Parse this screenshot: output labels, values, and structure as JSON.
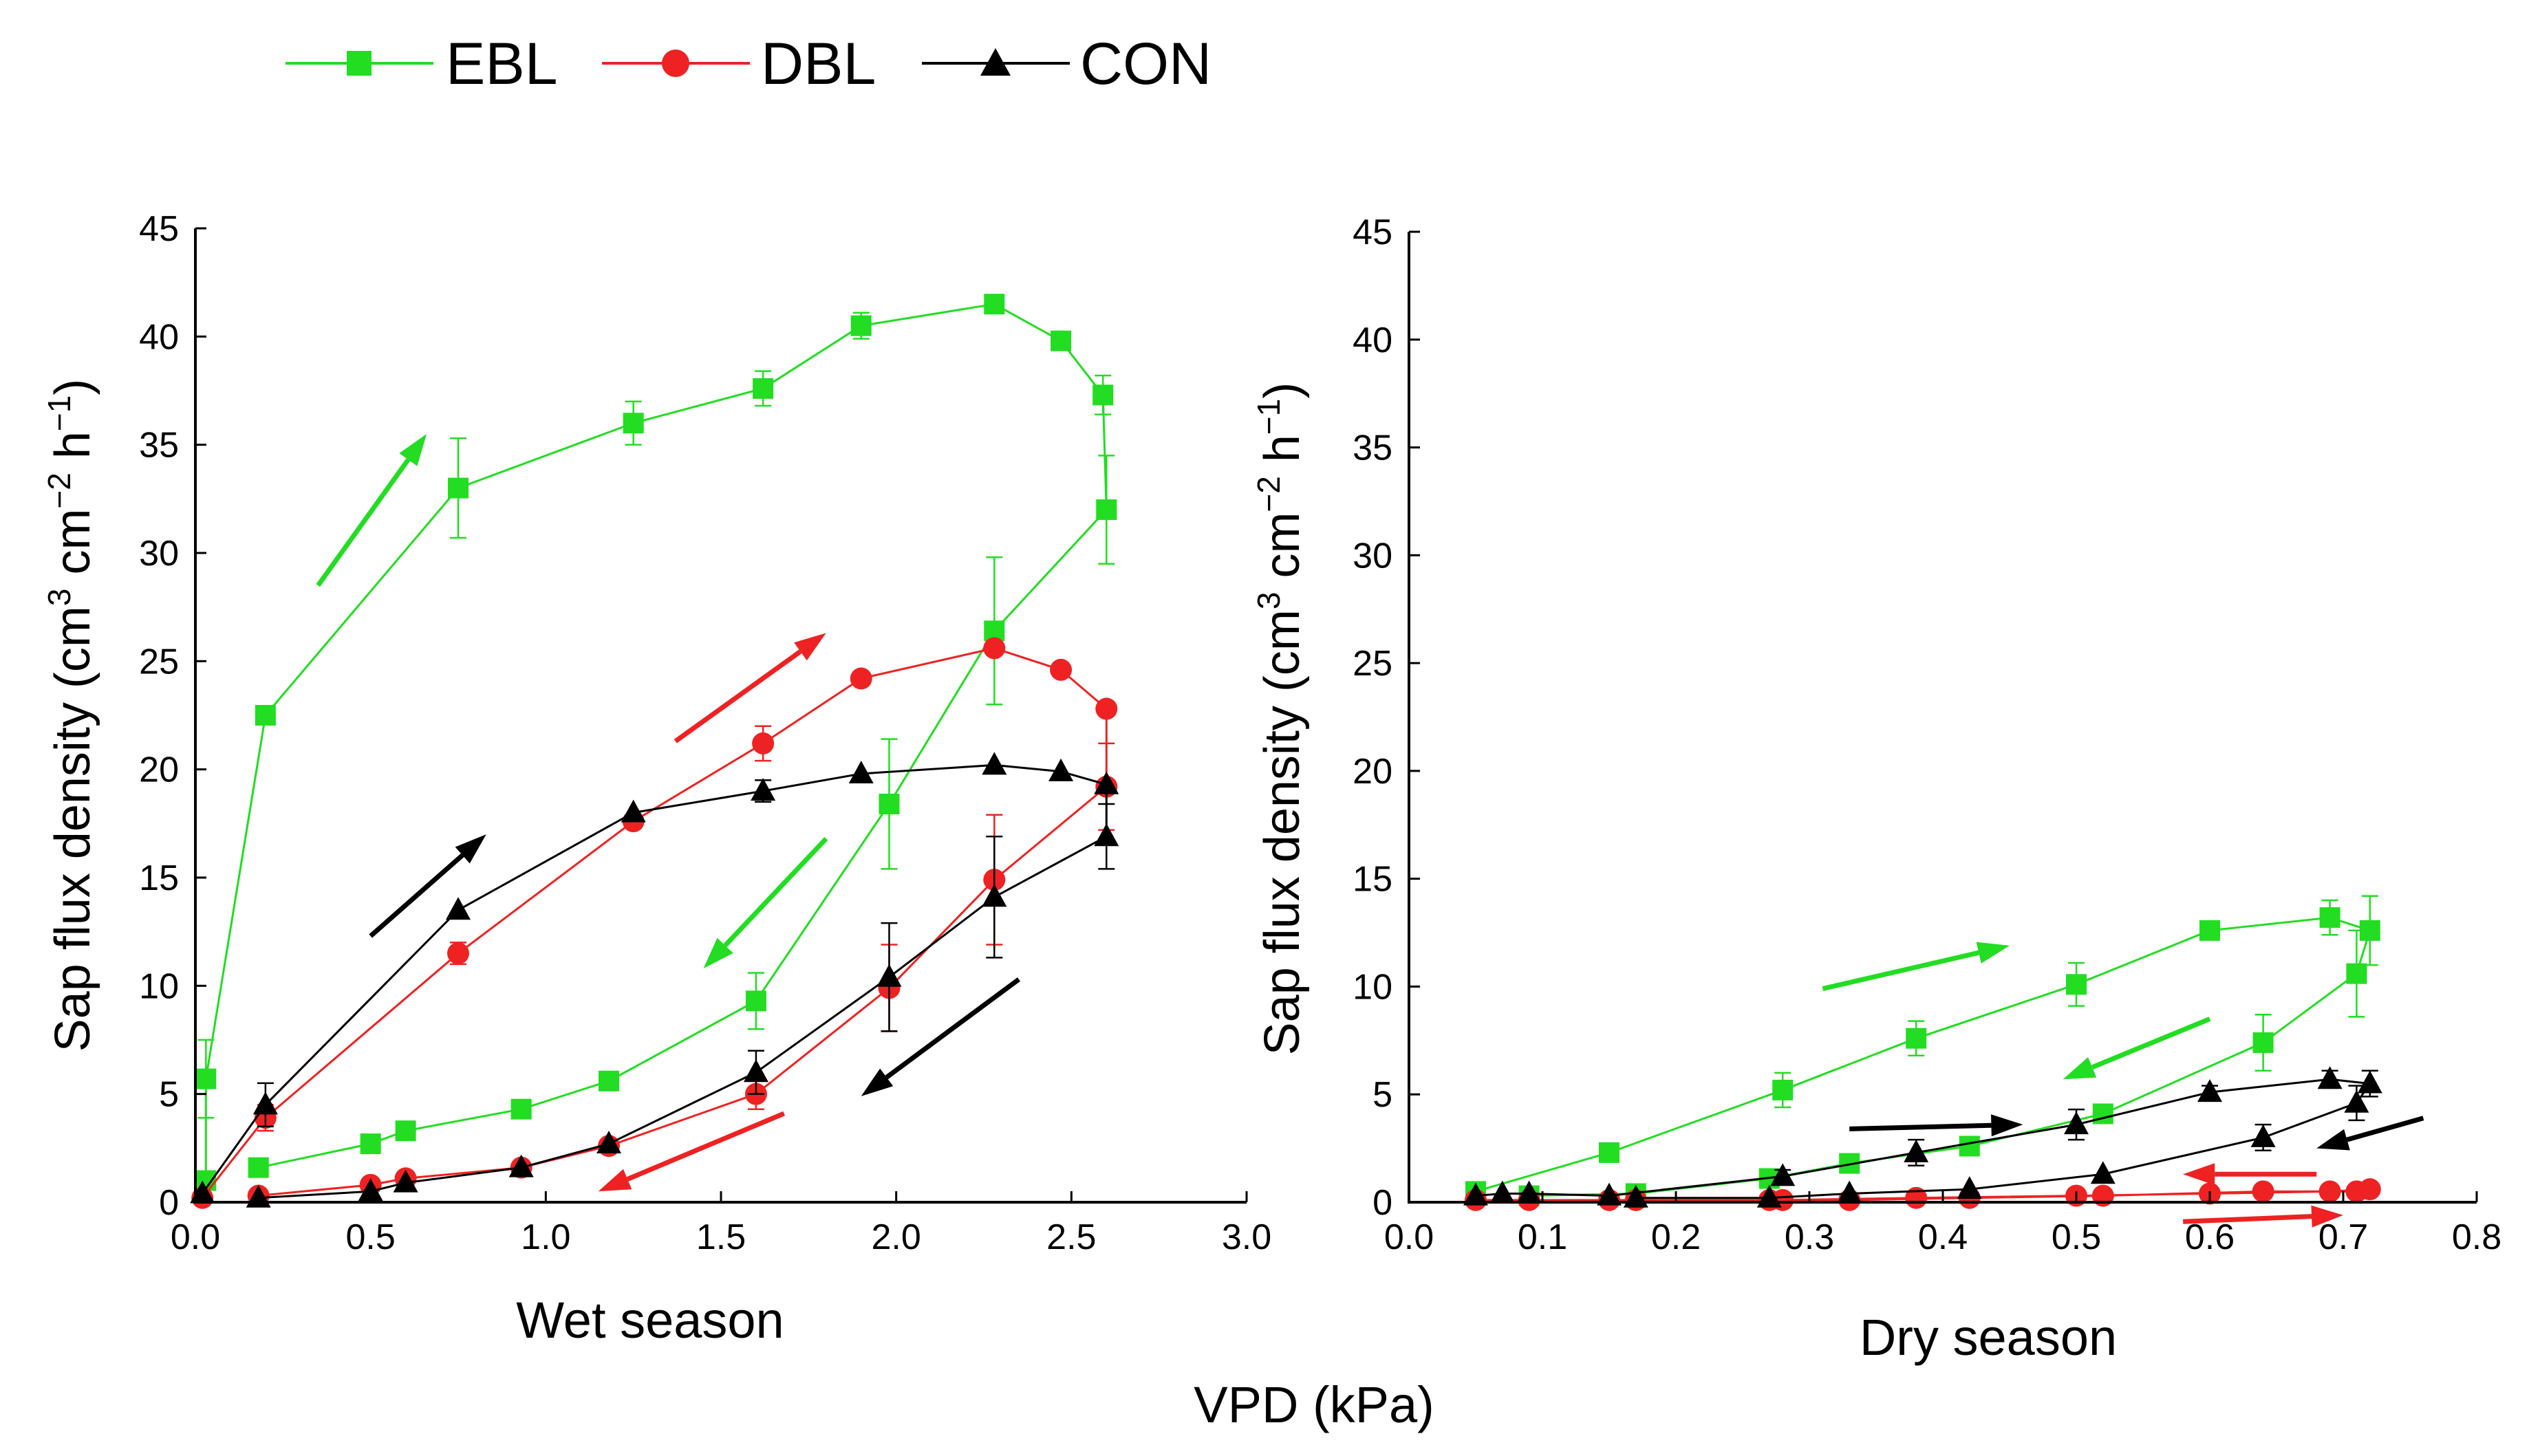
{
  "legend": {
    "items": [
      {
        "key": "EBL",
        "label": "EBL",
        "color": "#22dd22",
        "marker": "square"
      },
      {
        "key": "DBL",
        "label": "DBL",
        "color": "#ee2222",
        "marker": "circle"
      },
      {
        "key": "CON",
        "label": "CON",
        "color": "#000000",
        "marker": "triangle"
      }
    ]
  },
  "ylabel_parts": {
    "a": "Sap flux density (cm",
    "sup1": "3",
    "b": " cm",
    "sup2": "−2",
    "c": " h",
    "sup3": "−1",
    "d": ")"
  },
  "xlabel_common": "VPD (kPa)",
  "chart_data": [
    {
      "type": "line",
      "title": "Wet season",
      "xlabel": "Wet season",
      "ylabel": "Sap flux density (cm3 cm−2 h−1)",
      "xlim": [
        0,
        3.0
      ],
      "ylim": [
        0,
        45
      ],
      "xticks": [
        "0.0",
        "0.5",
        "1.0",
        "1.5",
        "2.0",
        "2.5",
        "3.0"
      ],
      "yticks": [
        "0",
        "5",
        "10",
        "15",
        "20",
        "25",
        "30",
        "35",
        "40",
        "45"
      ],
      "series": [
        {
          "name": "EBL",
          "points": [
            {
              "x": 0.03,
              "y": 1.0,
              "err": 0.3
            },
            {
              "x": 0.03,
              "y": 5.7,
              "err": 1.8
            },
            {
              "x": 0.2,
              "y": 22.5,
              "err": 0
            },
            {
              "x": 0.75,
              "y": 33.0,
              "err": 2.3
            },
            {
              "x": 1.25,
              "y": 36.0,
              "err": 1.0
            },
            {
              "x": 1.62,
              "y": 37.6,
              "err": 0.8
            },
            {
              "x": 1.9,
              "y": 40.5,
              "err": 0.6
            },
            {
              "x": 2.28,
              "y": 41.5,
              "err": 0
            },
            {
              "x": 2.47,
              "y": 39.8,
              "err": 0
            },
            {
              "x": 2.59,
              "y": 37.3,
              "err": 0.9
            },
            {
              "x": 2.6,
              "y": 32.0,
              "err": 2.5
            },
            {
              "x": 2.28,
              "y": 26.4,
              "err": 3.4
            },
            {
              "x": 1.98,
              "y": 18.4,
              "err": 3.0
            },
            {
              "x": 1.6,
              "y": 9.3,
              "err": 1.3
            },
            {
              "x": 1.18,
              "y": 5.6,
              "err": 0
            },
            {
              "x": 0.93,
              "y": 4.3,
              "err": 0
            },
            {
              "x": 0.6,
              "y": 3.3,
              "err": 0
            },
            {
              "x": 0.5,
              "y": 2.7,
              "err": 0
            },
            {
              "x": 0.18,
              "y": 1.6,
              "err": 0
            }
          ]
        },
        {
          "name": "DBL",
          "points": [
            {
              "x": 0.02,
              "y": 0.2,
              "err": 0
            },
            {
              "x": 0.2,
              "y": 3.9,
              "err": 0.6
            },
            {
              "x": 0.75,
              "y": 11.5,
              "err": 0.5
            },
            {
              "x": 1.25,
              "y": 17.6,
              "err": 0
            },
            {
              "x": 1.62,
              "y": 21.2,
              "err": 0.8
            },
            {
              "x": 1.9,
              "y": 24.2,
              "err": 0
            },
            {
              "x": 2.28,
              "y": 25.6,
              "err": 0
            },
            {
              "x": 2.47,
              "y": 24.6,
              "err": 0
            },
            {
              "x": 2.6,
              "y": 22.8,
              "err": 0
            },
            {
              "x": 2.6,
              "y": 19.2,
              "err": 2.0
            },
            {
              "x": 2.28,
              "y": 14.9,
              "err": 3.0
            },
            {
              "x": 1.98,
              "y": 9.9,
              "err": 2.0
            },
            {
              "x": 1.6,
              "y": 5.0,
              "err": 0.7
            },
            {
              "x": 1.18,
              "y": 2.6,
              "err": 0
            },
            {
              "x": 0.93,
              "y": 1.6,
              "err": 0
            },
            {
              "x": 0.6,
              "y": 1.1,
              "err": 0
            },
            {
              "x": 0.5,
              "y": 0.8,
              "err": 0
            },
            {
              "x": 0.18,
              "y": 0.3,
              "err": 0
            }
          ]
        },
        {
          "name": "CON",
          "points": [
            {
              "x": 0.02,
              "y": 0.4,
              "err": 0
            },
            {
              "x": 0.2,
              "y": 4.5,
              "err": 1.0
            },
            {
              "x": 0.75,
              "y": 13.5,
              "err": 0
            },
            {
              "x": 1.25,
              "y": 18.0,
              "err": 0
            },
            {
              "x": 1.62,
              "y": 19.0,
              "err": 0.5
            },
            {
              "x": 1.9,
              "y": 19.8,
              "err": 0
            },
            {
              "x": 2.28,
              "y": 20.2,
              "err": 0
            },
            {
              "x": 2.47,
              "y": 19.9,
              "err": 0
            },
            {
              "x": 2.6,
              "y": 19.3,
              "err": 0
            },
            {
              "x": 2.6,
              "y": 16.9,
              "err": 1.5
            },
            {
              "x": 2.28,
              "y": 14.1,
              "err": 2.8
            },
            {
              "x": 1.98,
              "y": 10.4,
              "err": 2.5
            },
            {
              "x": 1.6,
              "y": 6.0,
              "err": 1.0
            },
            {
              "x": 1.18,
              "y": 2.7,
              "err": 0
            },
            {
              "x": 0.93,
              "y": 1.6,
              "err": 0
            },
            {
              "x": 0.6,
              "y": 0.9,
              "err": 0
            },
            {
              "x": 0.5,
              "y": 0.5,
              "err": 0
            },
            {
              "x": 0.18,
              "y": 0.2,
              "err": 0
            }
          ]
        }
      ],
      "arrows": [
        {
          "color": "EBL",
          "from": [
            0.35,
            28.5
          ],
          "to": [
            0.66,
            35.5
          ]
        },
        {
          "color": "DBL",
          "from": [
            1.37,
            21.3
          ],
          "to": [
            1.8,
            26.3
          ]
        },
        {
          "color": "CON",
          "from": [
            0.5,
            12.3
          ],
          "to": [
            0.83,
            17.0
          ]
        },
        {
          "color": "EBL",
          "from": [
            1.8,
            16.8
          ],
          "to": [
            1.45,
            10.8
          ]
        },
        {
          "color": "CON",
          "from": [
            2.35,
            10.3
          ],
          "to": [
            1.9,
            4.9
          ]
        },
        {
          "color": "DBL",
          "from": [
            1.68,
            4.1
          ],
          "to": [
            1.15,
            0.5
          ]
        }
      ]
    },
    {
      "type": "line",
      "title": "Dry season",
      "xlabel": "Dry season",
      "ylabel": "Sap flux density (cm3 cm−2 h−1)",
      "xlim": [
        0,
        0.8
      ],
      "ylim": [
        0,
        45
      ],
      "xticks": [
        "0.0",
        "0.1",
        "0.2",
        "0.3",
        "0.4",
        "0.5",
        "0.6",
        "0.7",
        "0.8"
      ],
      "yticks": [
        "0",
        "5",
        "10",
        "15",
        "20",
        "25",
        "30",
        "35",
        "40",
        "45"
      ],
      "series": [
        {
          "name": "EBL",
          "points": [
            {
              "x": 0.05,
              "y": 0.5,
              "err": 0
            },
            {
              "x": 0.15,
              "y": 2.3,
              "err": 0
            },
            {
              "x": 0.28,
              "y": 5.2,
              "err": 0.8
            },
            {
              "x": 0.38,
              "y": 7.6,
              "err": 0.8
            },
            {
              "x": 0.5,
              "y": 10.1,
              "err": 1.0
            },
            {
              "x": 0.6,
              "y": 12.6,
              "err": 0.3
            },
            {
              "x": 0.69,
              "y": 13.2,
              "err": 0.8
            },
            {
              "x": 0.72,
              "y": 12.6,
              "err": 1.6
            },
            {
              "x": 0.71,
              "y": 10.6,
              "err": 2.0
            },
            {
              "x": 0.64,
              "y": 7.4,
              "err": 1.3
            },
            {
              "x": 0.52,
              "y": 4.1,
              "err": 0
            },
            {
              "x": 0.42,
              "y": 2.6,
              "err": 0
            },
            {
              "x": 0.33,
              "y": 1.8,
              "err": 0
            },
            {
              "x": 0.27,
              "y": 1.1,
              "err": 0
            },
            {
              "x": 0.17,
              "y": 0.4,
              "err": 0
            },
            {
              "x": 0.09,
              "y": 0.3,
              "err": 0
            }
          ]
        },
        {
          "name": "DBL",
          "points": [
            {
              "x": 0.05,
              "y": 0.1,
              "err": 0
            },
            {
              "x": 0.15,
              "y": 0.1,
              "err": 0
            },
            {
              "x": 0.28,
              "y": 0.1,
              "err": 0
            },
            {
              "x": 0.38,
              "y": 0.2,
              "err": 0
            },
            {
              "x": 0.5,
              "y": 0.3,
              "err": 0
            },
            {
              "x": 0.6,
              "y": 0.4,
              "err": 0
            },
            {
              "x": 0.69,
              "y": 0.5,
              "err": 0
            },
            {
              "x": 0.72,
              "y": 0.6,
              "err": 0
            },
            {
              "x": 0.71,
              "y": 0.5,
              "err": 0
            },
            {
              "x": 0.64,
              "y": 0.5,
              "err": 0
            },
            {
              "x": 0.52,
              "y": 0.3,
              "err": 0
            },
            {
              "x": 0.42,
              "y": 0.2,
              "err": 0
            },
            {
              "x": 0.33,
              "y": 0.1,
              "err": 0
            },
            {
              "x": 0.27,
              "y": 0.1,
              "err": 0
            },
            {
              "x": 0.17,
              "y": 0.1,
              "err": 0
            },
            {
              "x": 0.09,
              "y": 0.1,
              "err": 0
            }
          ]
        },
        {
          "name": "CON",
          "points": [
            {
              "x": 0.05,
              "y": 0.3,
              "err": 0
            },
            {
              "x": 0.07,
              "y": 0.4,
              "err": 0
            },
            {
              "x": 0.09,
              "y": 0.4,
              "err": 0
            },
            {
              "x": 0.15,
              "y": 0.3,
              "err": 0
            },
            {
              "x": 0.28,
              "y": 1.2,
              "err": 0.3
            },
            {
              "x": 0.38,
              "y": 2.3,
              "err": 0.6
            },
            {
              "x": 0.5,
              "y": 3.6,
              "err": 0.7
            },
            {
              "x": 0.6,
              "y": 5.1,
              "err": 0.3
            },
            {
              "x": 0.69,
              "y": 5.7,
              "err": 0.4
            },
            {
              "x": 0.72,
              "y": 5.5,
              "err": 0.6
            },
            {
              "x": 0.71,
              "y": 4.6,
              "err": 0.8
            },
            {
              "x": 0.64,
              "y": 3.0,
              "err": 0.6
            },
            {
              "x": 0.52,
              "y": 1.3,
              "err": 0
            },
            {
              "x": 0.42,
              "y": 0.6,
              "err": 0
            },
            {
              "x": 0.33,
              "y": 0.4,
              "err": 0
            },
            {
              "x": 0.27,
              "y": 0.2,
              "err": 0
            },
            {
              "x": 0.17,
              "y": 0.2,
              "err": 0
            }
          ]
        }
      ],
      "arrows": [
        {
          "color": "EBL",
          "from": [
            0.31,
            9.9
          ],
          "to": [
            0.45,
            11.9
          ]
        },
        {
          "color": "EBL",
          "from": [
            0.6,
            8.5
          ],
          "to": [
            0.49,
            5.7
          ]
        },
        {
          "color": "CON",
          "from": [
            0.33,
            3.4
          ],
          "to": [
            0.46,
            3.6
          ]
        },
        {
          "color": "CON",
          "from": [
            0.76,
            3.9
          ],
          "to": [
            0.68,
            2.5
          ]
        },
        {
          "color": "DBL",
          "from": [
            0.68,
            1.3
          ],
          "to": [
            0.58,
            1.3
          ]
        },
        {
          "color": "DBL",
          "from": [
            0.58,
            -0.9
          ],
          "to": [
            0.7,
            -0.6
          ]
        }
      ]
    }
  ]
}
